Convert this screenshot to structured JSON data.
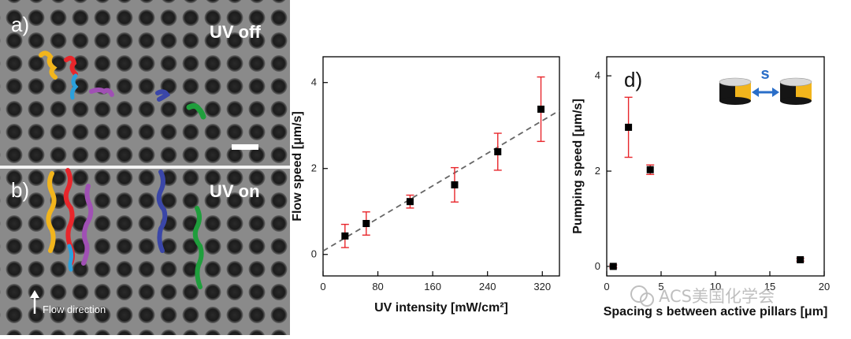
{
  "microscopy": {
    "panel_a": {
      "letter": "a)",
      "condition": "UV off"
    },
    "panel_b": {
      "letter": "b)",
      "condition": "UV on",
      "annotation": "Flow direction"
    },
    "trace_colors": [
      "#f2b51c",
      "#e8262b",
      "#2aa0dc",
      "#a050b4",
      "#3a46a8",
      "#1f9e3c"
    ]
  },
  "watermark": "ACS美国化学会",
  "chart_data": [
    {
      "type": "scatter",
      "panel": "c",
      "title": "",
      "xlabel": "UV intensity [mW/cm²]",
      "ylabel": "Flow speed [μm/s]",
      "xlim": [
        0,
        345
      ],
      "ylim": [
        -0.5,
        4.6
      ],
      "xticks": [
        0,
        80,
        160,
        240,
        320
      ],
      "yticks": [
        0,
        2,
        4
      ],
      "points": [
        {
          "x": 32,
          "y": 0.43,
          "err": 0.27
        },
        {
          "x": 63,
          "y": 0.72,
          "err": 0.27
        },
        {
          "x": 127,
          "y": 1.23,
          "err": 0.15
        },
        {
          "x": 192,
          "y": 1.62,
          "err": 0.4
        },
        {
          "x": 255,
          "y": 2.39,
          "err": 0.43
        },
        {
          "x": 318,
          "y": 3.38,
          "err": 0.75
        }
      ],
      "fit_line": {
        "style": "dashed",
        "x": [
          0,
          345
        ],
        "y": [
          0.08,
          3.35
        ]
      },
      "marker_color": "#000000",
      "errorbar_color": "#e8262b",
      "fit_color": "#666666",
      "grid": false
    },
    {
      "type": "scatter",
      "panel": "d",
      "panel_letter": "d)",
      "inset_label": "s",
      "title": "",
      "xlabel": "Spacing s between active pillars [μm]",
      "ylabel": "Pumping speed [μm/s]",
      "xlim": [
        0,
        20
      ],
      "ylim": [
        -0.2,
        4.4
      ],
      "xticks": [
        0,
        5,
        10,
        15,
        20
      ],
      "yticks": [
        0,
        2,
        4
      ],
      "points": [
        {
          "x": 0.6,
          "y": 0.0,
          "err": 0.03
        },
        {
          "x": 2.0,
          "y": 2.92,
          "err": 0.63
        },
        {
          "x": 4.0,
          "y": 2.03,
          "err": 0.1
        },
        {
          "x": 17.8,
          "y": 0.14,
          "err": 0.03
        }
      ],
      "marker_color": "#000000",
      "errorbar_color": "#e8262b",
      "inset_colors": {
        "pillar_dark": "#151515",
        "pillar_light": "#f2b51c",
        "arrow": "#2a6ec8"
      },
      "grid": false
    }
  ]
}
